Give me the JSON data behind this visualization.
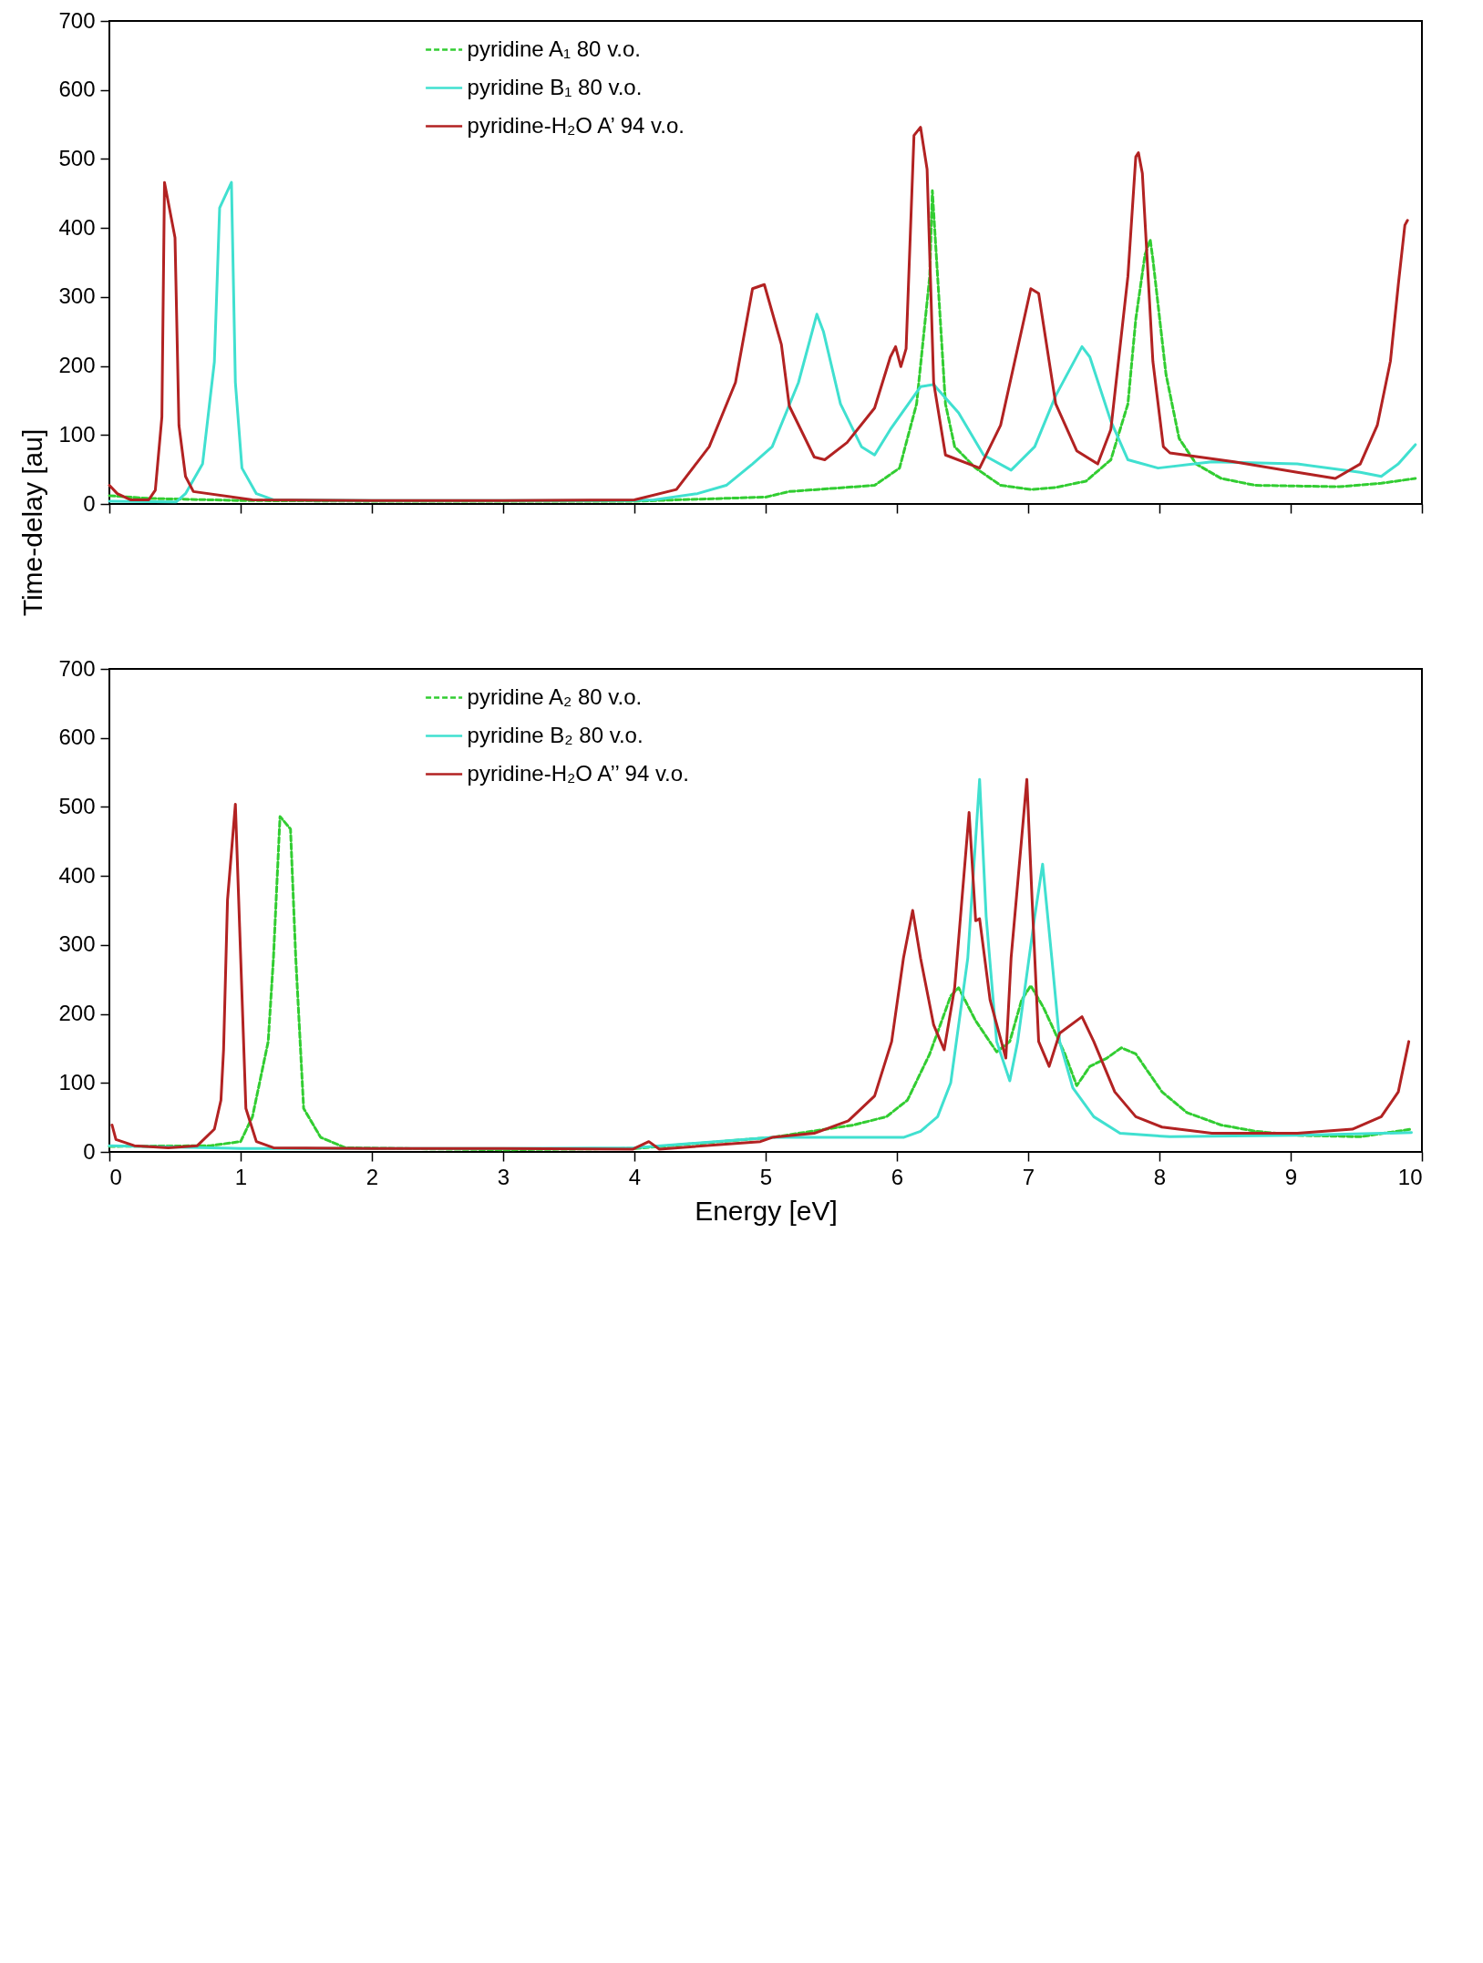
{
  "chart_data": [
    {
      "type": "line",
      "ylabel": "Time-delay  [au]",
      "xlim": [
        0,
        10
      ],
      "xticks": [
        0,
        1,
        2,
        3,
        4,
        5,
        6,
        7,
        8,
        9,
        10
      ],
      "ylim": [
        0,
        700
      ],
      "yticks": [
        0,
        100,
        200,
        300,
        400,
        500,
        600,
        700
      ],
      "tick_labels": "y",
      "grid": false,
      "legend": "top left",
      "series": [
        {
          "name": "pyridine A₁ 80  v.o.",
          "color": "#32cd32",
          "line_style": "dashed",
          "x": [
            0,
            0.3,
            1,
            2,
            3,
            4,
            5,
            5.18,
            5.83,
            6.02,
            6.15,
            6.25,
            6.27,
            6.29,
            6.37,
            6.44,
            6.6,
            6.79,
            7.02,
            7.21,
            7.44,
            7.63,
            7.76,
            7.82,
            7.89,
            7.93,
            7.95,
            8.05,
            8.15,
            8.28,
            8.47,
            8.73,
            9.37,
            9.69,
            9.95
          ],
          "values": [
            12,
            8,
            5,
            4,
            4,
            4,
            10,
            18,
            27,
            52,
            145,
            330,
            454,
            392,
            145,
            83,
            52,
            27,
            21,
            24,
            33,
            64,
            145,
            268,
            361,
            383,
            355,
            188,
            95,
            58,
            37,
            27,
            25,
            30,
            37
          ]
        },
        {
          "name": "pyridine B₁ 80  v.o.",
          "color": "#40e0d0",
          "line_style": "solid",
          "x": [
            0,
            0.51,
            0.58,
            0.71,
            0.8,
            0.84,
            0.93,
            0.96,
            1.01,
            1.12,
            1.25,
            2,
            3,
            4,
            4.15,
            4.48,
            4.7,
            4.9,
            5.05,
            5.25,
            5.39,
            5.44,
            5.57,
            5.73,
            5.83,
            5.95,
            6.18,
            6.28,
            6.47,
            6.66,
            6.87,
            7.05,
            7.21,
            7.41,
            7.47,
            7.63,
            7.76,
            7.99,
            8.4,
            9.05,
            9.53,
            9.69,
            9.82,
            9.95
          ],
          "values": [
            4,
            3,
            15,
            58,
            206,
            429,
            466,
            176,
            52,
            15,
            6,
            5,
            5,
            5,
            6,
            15,
            27,
            58,
            83,
            176,
            275,
            250,
            145,
            83,
            71,
            108,
            170,
            173,
            132,
            71,
            49,
            83,
            157,
            228,
            213,
            120,
            64,
            52,
            61,
            58,
            46,
            40,
            58,
            86
          ]
        },
        {
          "name": "pyridine-H₂O A’ 94  v.o.",
          "color": "#b22222",
          "line_style": "solid",
          "x": [
            0,
            0.06,
            0.16,
            0.3,
            0.35,
            0.4,
            0.42,
            0.5,
            0.53,
            0.58,
            0.64,
            1.09,
            2,
            3,
            4,
            4.32,
            4.57,
            4.77,
            4.9,
            4.99,
            5.12,
            5.18,
            5.37,
            5.45,
            5.62,
            5.83,
            5.95,
            5.99,
            6.03,
            6.07,
            6.13,
            6.18,
            6.23,
            6.28,
            6.37,
            6.63,
            6.79,
            7.02,
            7.08,
            7.21,
            7.37,
            7.53,
            7.63,
            7.76,
            7.82,
            7.84,
            7.87,
            7.95,
            8.03,
            8.08,
            8.57,
            9.05,
            9.34,
            9.53,
            9.66,
            9.76,
            9.82,
            9.87,
            9.89
          ],
          "values": [
            27,
            15,
            6,
            6,
            20,
            126,
            466,
            386,
            114,
            40,
            18,
            6,
            5,
            5,
            6,
            21,
            83,
            176,
            312,
            318,
            231,
            142,
            68,
            64,
            89,
            139,
            213,
            228,
            199,
            225,
            534,
            546,
            485,
            176,
            71,
            52,
            114,
            312,
            305,
            145,
            77,
            58,
            108,
            330,
            503,
            509,
            479,
            207,
            83,
            74,
            61,
            46,
            37,
            58,
            114,
            207,
            318,
            404,
            411
          ]
        }
      ]
    },
    {
      "type": "line",
      "xlabel": "Energy [eV]",
      "xlim": [
        0,
        10
      ],
      "xticks": [
        0,
        1,
        2,
        3,
        4,
        5,
        6,
        7,
        8,
        9,
        10
      ],
      "ylim": [
        0,
        700
      ],
      "yticks": [
        0,
        100,
        200,
        300,
        400,
        500,
        600,
        700
      ],
      "grid": false,
      "legend": "top left",
      "series": [
        {
          "name": "pyridine A₂ 80  v.o.",
          "color": "#32cd32",
          "line_style": "dashed",
          "x": [
            0,
            0.77,
            1,
            1.09,
            1.21,
            1.25,
            1.3,
            1.38,
            1.42,
            1.48,
            1.61,
            1.8,
            3,
            4,
            5.05,
            5.25,
            5.67,
            5.92,
            6.08,
            6.25,
            6.41,
            6.47,
            6.6,
            6.76,
            6.86,
            6.95,
            7.02,
            7.12,
            7.28,
            7.37,
            7.47,
            7.6,
            7.71,
            7.82,
            8.02,
            8.21,
            8.47,
            8.73,
            9.05,
            9.53,
            9.92
          ],
          "values": [
            8,
            9,
            15,
            51,
            160,
            281,
            486,
            468,
            281,
            63,
            21,
            6,
            3,
            5,
            21,
            27,
            39,
            51,
            75,
            142,
            226,
            238,
            190,
            145,
            160,
            220,
            241,
            208,
            142,
            96,
            124,
            136,
            151,
            142,
            87,
            57,
            39,
            30,
            24,
            22,
            33
          ]
        },
        {
          "name": "pyridine B₂ 80  v.o.",
          "color": "#40e0d0",
          "line_style": "solid",
          "x": [
            0,
            1,
            2,
            3,
            4,
            5.05,
            6.05,
            6.18,
            6.31,
            6.41,
            6.54,
            6.63,
            6.68,
            6.76,
            6.86,
            6.92,
            7.05,
            7.11,
            7.18,
            7.24,
            7.34,
            7.5,
            7.7,
            8.08,
            9.05,
            9.92
          ],
          "values": [
            9,
            5,
            5,
            5,
            6,
            21,
            21,
            30,
            51,
            100,
            281,
            540,
            341,
            160,
            103,
            160,
            341,
            417,
            281,
            160,
            93,
            51,
            27,
            22,
            24,
            28
          ]
        },
        {
          "name": "pyridine-H₂O A’’ 94  v.o.",
          "color": "#b22222",
          "line_style": "solid",
          "x": [
            0.02,
            0.05,
            0.19,
            0.45,
            0.67,
            0.8,
            0.85,
            0.87,
            0.9,
            0.96,
            1.04,
            1.08,
            1.12,
            1.25,
            2,
            3,
            3.99,
            4.11,
            4.19,
            4.96,
            5.05,
            5.37,
            5.63,
            5.83,
            5.96,
            6.05,
            6.12,
            6.18,
            6.28,
            6.36,
            6.44,
            6.55,
            6.6,
            6.63,
            6.71,
            6.83,
            6.87,
            6.99,
            7.03,
            7.08,
            7.16,
            7.24,
            7.41,
            7.5,
            7.66,
            7.82,
            8.02,
            8.4,
            9.05,
            9.47,
            9.69,
            9.82,
            9.9
          ],
          "values": [
            39,
            18,
            9,
            6,
            9,
            33,
            75,
            148,
            365,
            504,
            63,
            39,
            15,
            6,
            5,
            5,
            4,
            15,
            4,
            15,
            21,
            27,
            45,
            81,
            160,
            281,
            350,
            281,
            184,
            148,
            238,
            492,
            335,
            338,
            220,
            136,
            281,
            540,
            365,
            160,
            124,
            172,
            196,
            160,
            87,
            51,
            36,
            27,
            27,
            33,
            51,
            87,
            160
          ]
        }
      ]
    }
  ]
}
